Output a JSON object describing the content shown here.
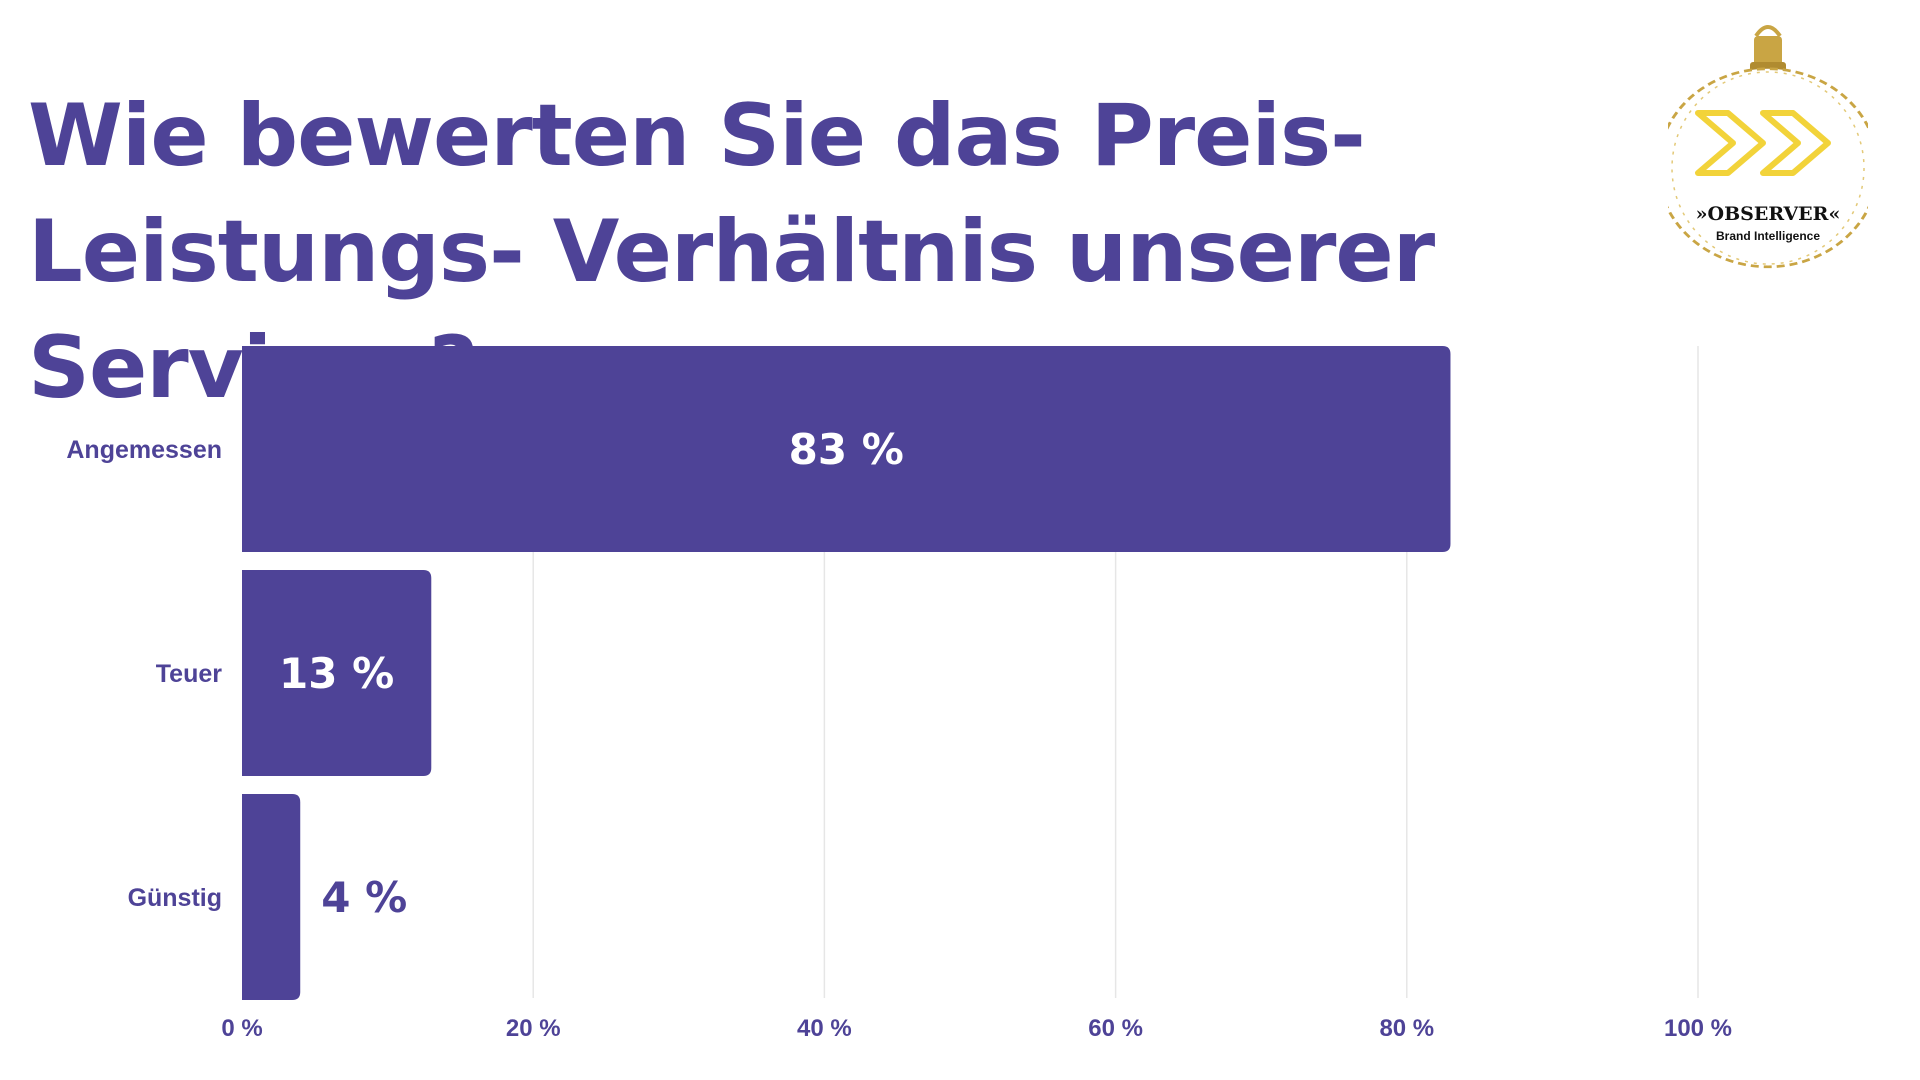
{
  "title": "Wie bewerten Sie das Preis-Leistungs- Verhältnis unserer Services?",
  "logo": {
    "text": "»OBSERVER«",
    "subtext": "Brand Intelligence",
    "icon": "double-chevron-ornament-icon"
  },
  "colors": {
    "accent": "#4e4397",
    "bar": "#4e4397",
    "label_inside": "#ffffff",
    "logo_gold": "#c9a544",
    "logo_yellow": "#f2d33a"
  },
  "chart_data": {
    "type": "bar",
    "orientation": "horizontal",
    "categories": [
      "Angemessen",
      "Teuer",
      "Günstig"
    ],
    "values": [
      83,
      13,
      4
    ],
    "value_labels": [
      "83 %",
      "13 %",
      "4 %"
    ],
    "xlim": [
      0,
      100
    ],
    "xticks": [
      0,
      20,
      40,
      60,
      80,
      100
    ],
    "xtick_labels": [
      "0 %",
      "20 %",
      "40 %",
      "60 %",
      "80 %",
      "100 %"
    ],
    "grid": true,
    "legend": "none",
    "title": "Wie bewerten Sie das Preis-Leistungs- Verhältnis unserer Services?",
    "xlabel": "",
    "ylabel": ""
  }
}
